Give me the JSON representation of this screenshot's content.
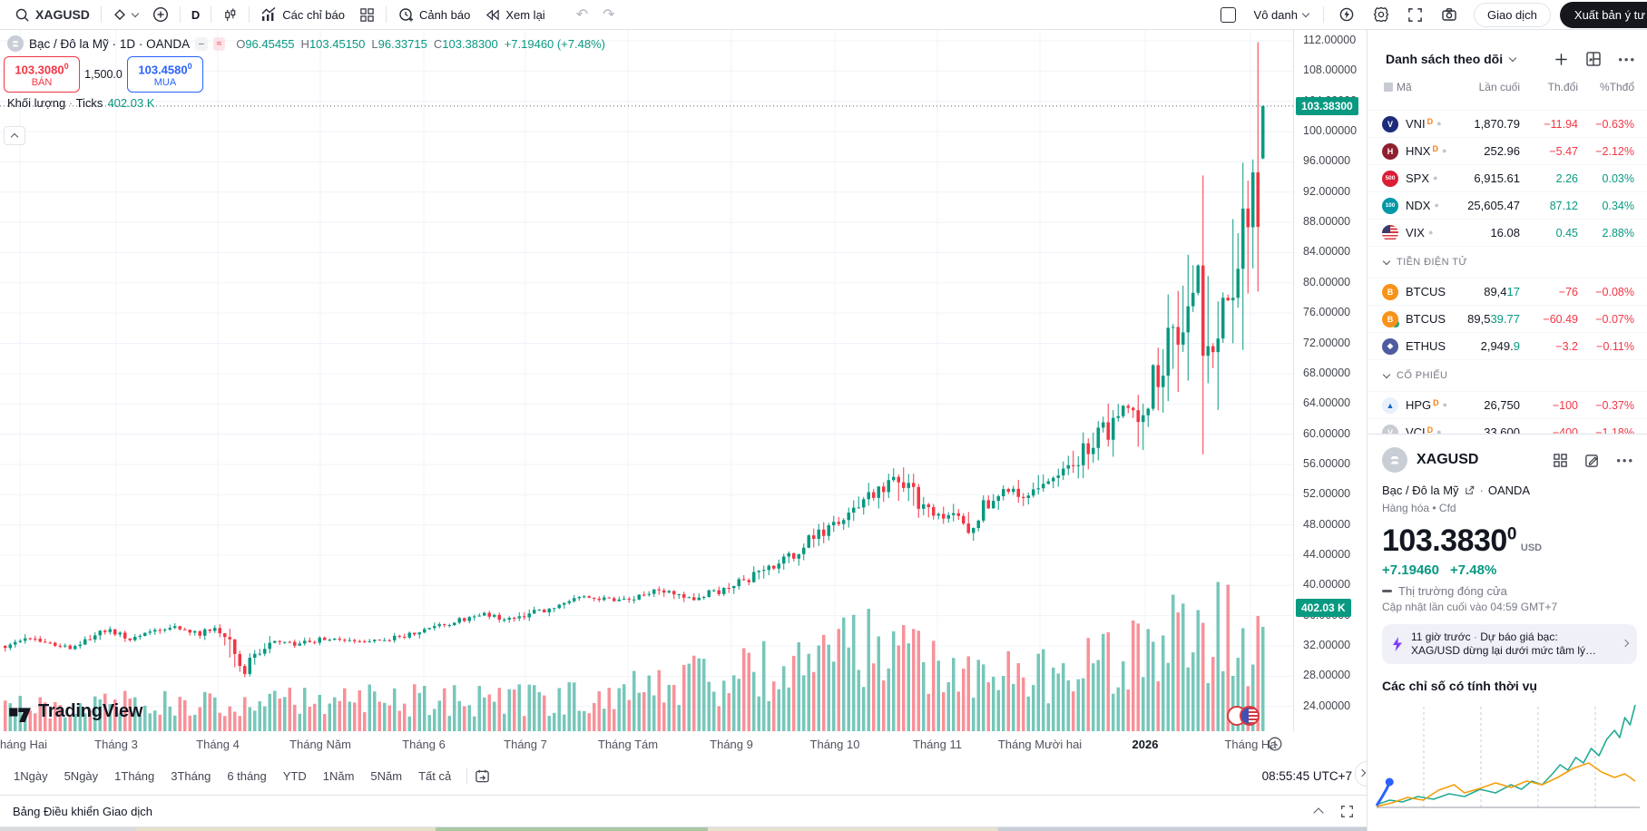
{
  "toolbar": {
    "symbol": "XAGUSD",
    "interval": "D",
    "indicators": "Các chỉ báo",
    "alert": "Cảnh báo",
    "replay": "Xem lại",
    "user": "Vô danh",
    "trade": "Giao dịch",
    "publish": "Xuất bản ý tư"
  },
  "legend": {
    "title": "Bạc / Đô la Mỹ",
    "sep1": "·",
    "interval": "1D",
    "sep2": "·",
    "exchange": "OANDA",
    "o_label": "O",
    "o": "96.45455",
    "h_label": "H",
    "h": "103.45150",
    "l_label": "L",
    "l": "96.33715",
    "c_label": "C",
    "c": "103.38300",
    "chg": "+7.19460 (+7.48%)",
    "vol_label": "Khối lượng",
    "vol_sep": "·",
    "vol_ticks": "Ticks",
    "vol_value": "402.03 K"
  },
  "order_panel": {
    "sell_price": "103.3080",
    "sell_sup": "0",
    "sell_label": "BÁN",
    "qty": "1,500.0",
    "buy_price": "103.4580",
    "buy_sup": "0",
    "buy_label": "MUA"
  },
  "watermark": "TradingView",
  "tf_bar": {
    "items": [
      "1Ngày",
      "5Ngày",
      "1Tháng",
      "3Tháng",
      "6 tháng",
      "YTD",
      "1Năm",
      "5Năm",
      "Tất cả"
    ],
    "clock": "08:55:45 UTC+7"
  },
  "bottom_bar": {
    "title": "Bảng Điều khiển Giao dịch"
  },
  "watchlist": {
    "title": "Danh sách theo dõi",
    "columns": [
      "Mã",
      "Lần cuối",
      "Th.đổi",
      "%Thđổ"
    ],
    "items": [
      {
        "type": "row",
        "symbol": "VNI",
        "d": true,
        "last": "1,870.79",
        "chg": "−11.94",
        "pct": "−0.63%",
        "dir": "down",
        "icon": {
          "bg": "#1c2b7a",
          "glyph": "V"
        }
      },
      {
        "type": "row",
        "symbol": "HNX",
        "d": true,
        "last": "252.96",
        "chg": "−5.47",
        "pct": "−2.12%",
        "dir": "down",
        "icon": {
          "bg": "#8f1f2f",
          "glyph": "H"
        }
      },
      {
        "type": "row",
        "symbol": "SPX",
        "d": false,
        "last": "6,915.61",
        "chg": "2.26",
        "pct": "0.03%",
        "dir": "up",
        "icon": {
          "bg": "#d91e36",
          "glyph": "500"
        }
      },
      {
        "type": "row",
        "symbol": "NDX",
        "d": false,
        "last": "25,605.47",
        "chg": "87.12",
        "pct": "0.34%",
        "dir": "up",
        "icon": {
          "bg": "#0097a7",
          "glyph": "100"
        }
      },
      {
        "type": "row",
        "symbol": "VIX",
        "d": false,
        "last": "16.08",
        "chg": "0.45",
        "pct": "2.88%",
        "dir": "up",
        "icon": {
          "bg": "flag",
          "glyph": ""
        }
      },
      {
        "type": "section",
        "label": "TIỀN ĐIỆN TỬ"
      },
      {
        "type": "row",
        "symbol": "BTCUS",
        "d": false,
        "last_pre": "89,4",
        "last_hl": "17",
        "chg": "−76",
        "pct": "−0.08%",
        "dir": "down",
        "icon": {
          "bg": "#f7931a",
          "glyph": "B"
        }
      },
      {
        "type": "row",
        "symbol": "BTCUS",
        "d": false,
        "last_pre": "89,5",
        "last_hl": "39.77",
        "chg": "−60.49",
        "pct": "−0.07%",
        "dir": "down",
        "icon": {
          "bg": "#f7931a",
          "glyph": "B",
          "badge": "#26a17b"
        }
      },
      {
        "type": "row",
        "symbol": "ETHUS",
        "d": false,
        "last_pre": "2,949.",
        "last_hl": "9",
        "chg": "−3.2",
        "pct": "−0.11%",
        "dir": "down",
        "icon": {
          "bg": "#4e5b9e",
          "glyph": "◆"
        }
      },
      {
        "type": "section",
        "label": "CỔ PHIẾU"
      },
      {
        "type": "row",
        "symbol": "HPG",
        "d": true,
        "last": "26,750",
        "chg": "−100",
        "pct": "−0.37%",
        "dir": "down",
        "icon": {
          "bg": "#e8f1fb",
          "glyph": "▲",
          "fg": "#1565c0"
        }
      },
      {
        "type": "row",
        "symbol": "VCI",
        "d": true,
        "last": "33,600",
        "chg": "−400",
        "pct": "−1.18%",
        "dir": "down",
        "icon": {
          "bg": "#c9ccd3",
          "glyph": "V"
        },
        "clipped": true
      }
    ]
  },
  "detail": {
    "symbol": "XAGUSD",
    "desc": "Bạc / Đô la Mỹ",
    "sep": "·",
    "exchange": "OANDA",
    "class_line": "Hàng hóa • Cfd",
    "price": "103.3830",
    "price_sup": "0",
    "currency": "USD",
    "change": "+7.19460",
    "change_pct": "+7.48%",
    "market_status": "Thị trường đóng cửa",
    "updated": "Cập nhật lần cuối vào 04:59 GMT+7",
    "news": {
      "time": "11 giờ trước",
      "sep": "·",
      "headline": "Dự báo giá bạc:",
      "line2": "XAG/USD dừng lại dưới mức tâm lý…"
    },
    "seasonal_title": "Các chỉ số có tính thời vụ"
  },
  "chart_data": [
    {
      "type": "candlestick",
      "title": "XAGUSD · 1D · OANDA",
      "ylabel": "USD",
      "y_axis": {
        "min": 24,
        "max": 112,
        "step": 4,
        "decimals": 5
      },
      "x_labels": [
        {
          "text": "Tháng Hai",
          "x": 22
        },
        {
          "text": "Tháng 3",
          "x": 128
        },
        {
          "text": "Tháng 4",
          "x": 240
        },
        {
          "text": "Tháng Năm",
          "x": 353
        },
        {
          "text": "Tháng 6",
          "x": 467
        },
        {
          "text": "Tháng 7",
          "x": 579
        },
        {
          "text": "Tháng Tám",
          "x": 692
        },
        {
          "text": "Tháng 9",
          "x": 806
        },
        {
          "text": "Tháng 10",
          "x": 920
        },
        {
          "text": "Tháng 11",
          "x": 1033
        },
        {
          "text": "Tháng Mười hai",
          "x": 1146
        },
        {
          "text": "2026",
          "x": 1262,
          "bold": true
        },
        {
          "text": "Tháng Ha",
          "x": 1378
        }
      ],
      "ohlc_last": {
        "open": 96.45455,
        "high": 103.4515,
        "low": 96.33715,
        "close": 103.383
      },
      "change_label": "+7.19460 (+7.48%)",
      "current_price": 103.383,
      "current_price_label": "103.38300",
      "volume_ticks": "402.03 K",
      "n_candles": 253,
      "price_path": [
        [
          0,
          32
        ],
        [
          0.02,
          33.2
        ],
        [
          0.05,
          31.8
        ],
        [
          0.08,
          34
        ],
        [
          0.1,
          33
        ],
        [
          0.13,
          34.5
        ],
        [
          0.155,
          33.6
        ],
        [
          0.165,
          34.3
        ],
        [
          0.175,
          33.8
        ],
        [
          0.185,
          29.8
        ],
        [
          0.19,
          28.6
        ],
        [
          0.2,
          30.8
        ],
        [
          0.215,
          32.6
        ],
        [
          0.23,
          32.2
        ],
        [
          0.26,
          33.1
        ],
        [
          0.29,
          32.6
        ],
        [
          0.32,
          33.4
        ],
        [
          0.35,
          34.9
        ],
        [
          0.38,
          36.1
        ],
        [
          0.4,
          35.6
        ],
        [
          0.43,
          36.9
        ],
        [
          0.46,
          38.3
        ],
        [
          0.49,
          38
        ],
        [
          0.52,
          39.3
        ],
        [
          0.545,
          38.1
        ],
        [
          0.56,
          38.9
        ],
        [
          0.58,
          40.2
        ],
        [
          0.6,
          41.6
        ],
        [
          0.62,
          43.6
        ],
        [
          0.64,
          46
        ],
        [
          0.655,
          47.6
        ],
        [
          0.67,
          48.6
        ],
        [
          0.685,
          51.6
        ],
        [
          0.7,
          53.6
        ],
        [
          0.71,
          54.7
        ],
        [
          0.72,
          52.4
        ],
        [
          0.73,
          50
        ],
        [
          0.74,
          48.6
        ],
        [
          0.75,
          49.6
        ],
        [
          0.765,
          47.9
        ],
        [
          0.78,
          50.6
        ],
        [
          0.8,
          52.6
        ],
        [
          0.815,
          51.1
        ],
        [
          0.83,
          53.6
        ],
        [
          0.845,
          55.6
        ],
        [
          0.86,
          58.1
        ],
        [
          0.875,
          60.6
        ],
        [
          0.89,
          63.6
        ],
        [
          0.9,
          62.1
        ],
        [
          0.91,
          65.6
        ],
        [
          0.925,
          70.6
        ],
        [
          0.935,
          75.6
        ],
        [
          0.945,
          80.6
        ],
        [
          0.951,
          84.6
        ],
        [
          0.956,
          78.1
        ],
        [
          0.961,
          74.6
        ],
        [
          0.966,
          79.6
        ],
        [
          0.971,
          82.6
        ],
        [
          0.976,
          80.1
        ],
        [
          0.981,
          86.1
        ],
        [
          0.986,
          91.1
        ],
        [
          0.991,
          94.6
        ],
        [
          0.996,
          96.2
        ],
        [
          1,
          103.383
        ]
      ],
      "volume_profile": [
        [
          0,
          45
        ],
        [
          0.45,
          55
        ],
        [
          0.58,
          95
        ],
        [
          0.66,
          120
        ],
        [
          0.695,
          175
        ],
        [
          0.72,
          130
        ],
        [
          0.75,
          80
        ],
        [
          0.82,
          95
        ],
        [
          0.87,
          120
        ],
        [
          0.92,
          150
        ],
        [
          0.95,
          170
        ],
        [
          0.98,
          160
        ],
        [
          1,
          120
        ]
      ],
      "colors": {
        "up": "#089981",
        "down": "#f23645",
        "vol_up": "rgba(8,153,129,0.55)",
        "vol_down": "rgba(242,54,69,0.55)",
        "grid": "#f0f3fa"
      }
    },
    {
      "type": "line",
      "title": "Các chỉ số có tính thời vụ",
      "baseline_y": 115,
      "series": [
        {
          "name": "seasonal-green",
          "color": "#22ab94",
          "points": [
            [
              0,
              112
            ],
            [
              0.05,
              107
            ],
            [
              0.1,
              109
            ],
            [
              0.16,
              103
            ],
            [
              0.22,
              106
            ],
            [
              0.28,
              100
            ],
            [
              0.34,
              103
            ],
            [
              0.4,
              95
            ],
            [
              0.46,
              99
            ],
            [
              0.52,
              90
            ],
            [
              0.56,
              95
            ],
            [
              0.6,
              86
            ],
            [
              0.64,
              90
            ],
            [
              0.68,
              78
            ],
            [
              0.71,
              68
            ],
            [
              0.74,
              74
            ],
            [
              0.77,
              60
            ],
            [
              0.8,
              66
            ],
            [
              0.83,
              50
            ],
            [
              0.86,
              58
            ],
            [
              0.89,
              40
            ],
            [
              0.92,
              30
            ],
            [
              0.94,
              38
            ],
            [
              0.96,
              16
            ],
            [
              0.98,
              24
            ],
            [
              1,
              2
            ]
          ]
        },
        {
          "name": "seasonal-orange",
          "color": "#f59e0b",
          "points": [
            [
              0,
              114
            ],
            [
              0.06,
              110
            ],
            [
              0.12,
              104
            ],
            [
              0.18,
              107
            ],
            [
              0.24,
              96
            ],
            [
              0.3,
              90
            ],
            [
              0.34,
              99
            ],
            [
              0.4,
              94
            ],
            [
              0.46,
              88
            ],
            [
              0.52,
              93
            ],
            [
              0.58,
              86
            ],
            [
              0.64,
              90
            ],
            [
              0.7,
              82
            ],
            [
              0.76,
              72
            ],
            [
              0.82,
              66
            ],
            [
              0.87,
              76
            ],
            [
              0.92,
              82
            ],
            [
              0.96,
              78
            ],
            [
              1,
              86
            ]
          ]
        },
        {
          "name": "seasonal-blue",
          "color": "#2962ff",
          "points": [
            [
              0,
              113
            ],
            [
              0.02,
              104
            ],
            [
              0.04,
              94
            ],
            [
              0.05,
              87
            ]
          ]
        }
      ]
    }
  ]
}
